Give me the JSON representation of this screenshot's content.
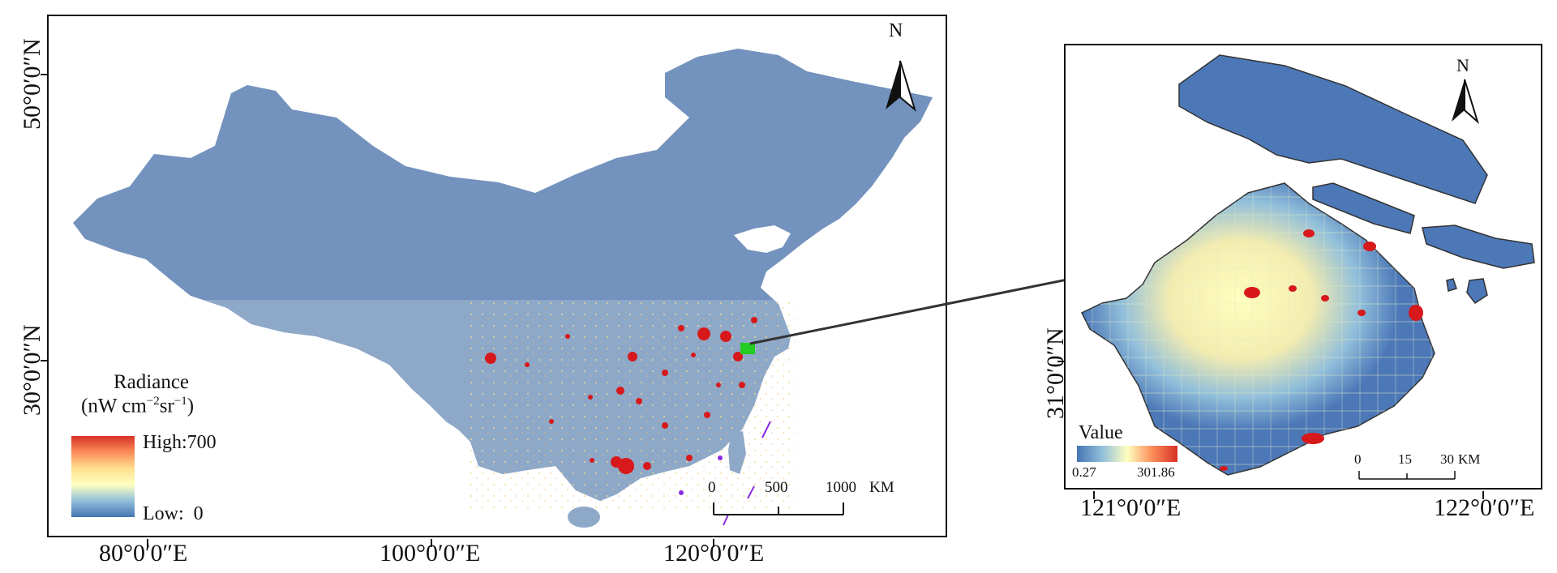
{
  "main_map": {
    "north_label": "N",
    "latitude_labels": [
      "50°0′0″N",
      "30°0′0″N"
    ],
    "longitude_labels": [
      "80°0′0″E",
      "100°0′0″E",
      "120°0′0″E"
    ],
    "legend": {
      "title_line1": "Radiance",
      "title_line2_prefix": "(nW cm",
      "title_sup1": "−2",
      "title_mid": "sr",
      "title_sup2": "−1",
      "title_suffix": ")",
      "high_label": "High:700",
      "low_label": "Low:  0",
      "colors": [
        "#d73027",
        "#fc8d59",
        "#fee090",
        "#ffffbf",
        "#91bfdb",
        "#4575b4"
      ]
    },
    "scale_bar": {
      "ticks": [
        "0",
        "500",
        "1000"
      ],
      "unit": "KM"
    }
  },
  "inset_map": {
    "north_label": "N",
    "latitude_labels": [
      "31°0′0″N"
    ],
    "longitude_labels": [
      "121°0′0″E",
      "122°0′0″E"
    ],
    "legend": {
      "title": "Value",
      "min_label": "0.27",
      "max_label": "301.86",
      "colors": [
        "#4575b4",
        "#91bfdb",
        "#ffffbf",
        "#fc8d59",
        "#d73027"
      ]
    },
    "scale_bar": {
      "ticks": [
        "0",
        "15",
        "30"
      ],
      "unit": "KM"
    }
  },
  "colors": {
    "land_low": "#7392bd",
    "land_inset": "#4c78b8",
    "hotspot": "#d7191c",
    "highlight": "#22cc22",
    "arrow": "#333333"
  }
}
